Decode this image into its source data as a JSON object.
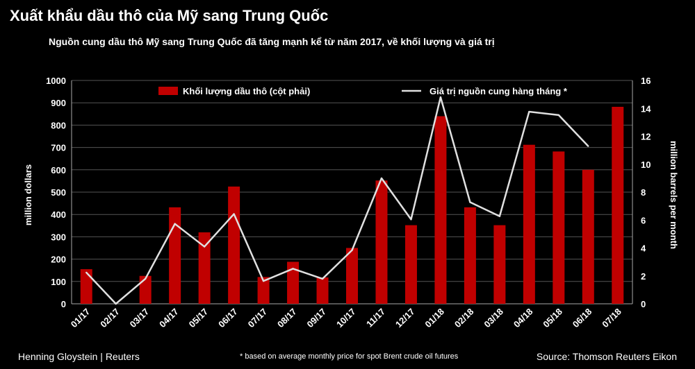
{
  "title": "Xuất khẩu dầu thô của Mỹ sang Trung Quốc",
  "subtitle": "Nguồn cung dầu thô Mỹ sang Trung Quốc đã tăng mạnh kể từ năm 2017, về khối lượng và giá trị",
  "footer": {
    "author": "Henning Gloystein | Reuters",
    "note": "* based on average monthly price for spot Brent crude oil futures",
    "source": "Source: Thomson Reuters Eikon"
  },
  "colors": {
    "bar": "#c00000",
    "line": "#e0e0e0",
    "background": "#000000",
    "grid": "#555555"
  },
  "chart_data": {
    "type": "bar",
    "categories": [
      "01/17",
      "02/17",
      "03/17",
      "04/17",
      "05/17",
      "06/17",
      "07/17",
      "08/17",
      "09/17",
      "10/17",
      "11/17",
      "12/17",
      "01/18",
      "02/18",
      "03/18",
      "04/18",
      "05/18",
      "06/18",
      "07/18"
    ],
    "series": [
      {
        "name": "Khối lượng dầu thô (cột phải)",
        "type": "bar",
        "axis": "left",
        "values": [
          155,
          0,
          125,
          432,
          320,
          525,
          120,
          188,
          118,
          250,
          552,
          352,
          840,
          432,
          352,
          712,
          682,
          600,
          882
        ]
      },
      {
        "name": "Giá trị nguồn cung hàng tháng *",
        "type": "line",
        "axis": "left",
        "values": [
          140,
          0,
          112,
          358,
          256,
          402,
          102,
          157,
          112,
          240,
          562,
          378,
          925,
          455,
          392,
          860,
          845,
          706,
          null
        ]
      }
    ],
    "ylabel": "million dollars",
    "ylabel_right": "million barrels per month",
    "ylim": [
      0,
      1000
    ],
    "yticks": [
      0,
      100,
      200,
      300,
      400,
      500,
      600,
      700,
      800,
      900,
      1000
    ],
    "ylim_right": [
      0,
      16
    ],
    "yticks_right": [
      0,
      2,
      4,
      6,
      8,
      10,
      12,
      14,
      16
    ],
    "grid": true,
    "legend_position": "top"
  }
}
